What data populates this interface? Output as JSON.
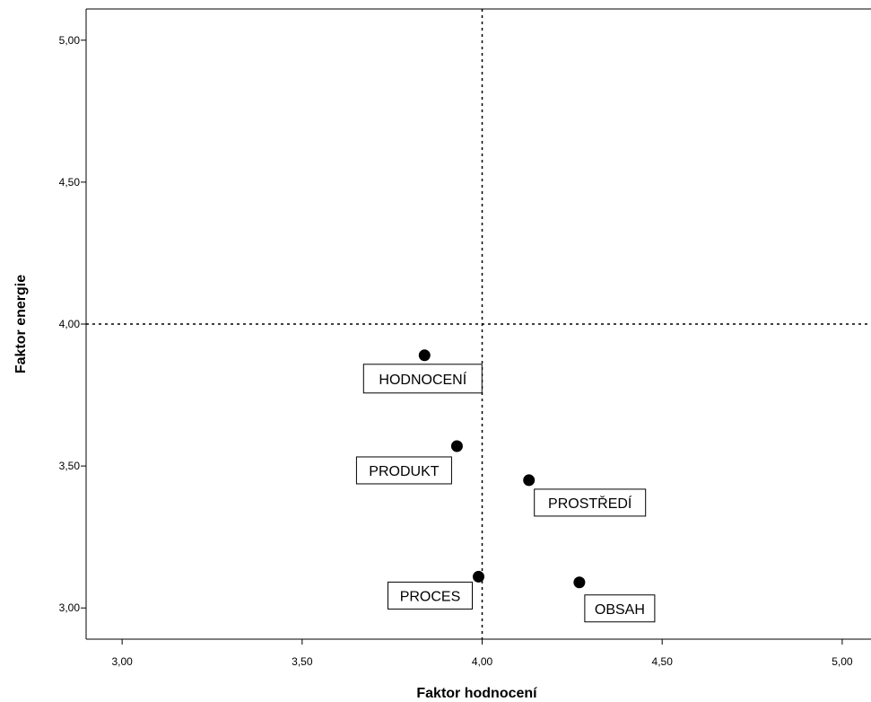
{
  "chart_data": {
    "type": "scatter",
    "xlabel": "Faktor hodnocení",
    "ylabel": "Faktor energie",
    "xlim": [
      2.9,
      5.08
    ],
    "ylim": [
      2.89,
      5.11
    ],
    "x_ticks": [
      "3,00",
      "3,50",
      "4,00",
      "4,50",
      "5,00"
    ],
    "y_ticks": [
      "3,00",
      "3,50",
      "4,00",
      "4,50",
      "5,00"
    ],
    "reference_lines": {
      "x": 4.0,
      "y": 4.0,
      "style": "dotted"
    },
    "grid": false,
    "legend": "none",
    "point_color": "#000000",
    "points": [
      {
        "label": "HODNOCENÍ",
        "x": 3.84,
        "y": 3.89
      },
      {
        "label": "PRODUKT",
        "x": 3.93,
        "y": 3.57
      },
      {
        "label": "PROSTŘEDÍ",
        "x": 4.13,
        "y": 3.45
      },
      {
        "label": "PROCES",
        "x": 3.99,
        "y": 3.11
      },
      {
        "label": "OBSAH",
        "x": 4.27,
        "y": 3.09
      }
    ]
  }
}
